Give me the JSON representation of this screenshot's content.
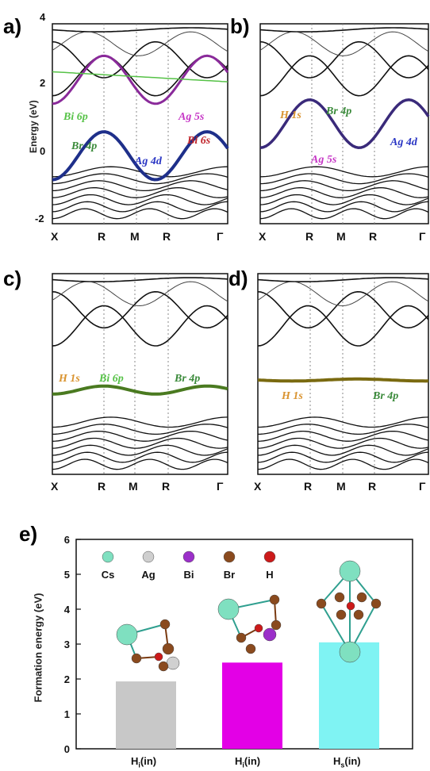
{
  "panels": {
    "a": {
      "letter": "a)",
      "ylabel": "Energy (eV)",
      "yticks": [
        "4",
        "2",
        "0",
        "-2"
      ],
      "kpoints": [
        "X",
        "R",
        "M",
        "R",
        "Γ"
      ],
      "orbitals": [
        {
          "text": "Bi 6p",
          "color": "#56c247"
        },
        {
          "text": "Br 4p",
          "color": "#3a8a3a"
        },
        {
          "text": "Ag 5s",
          "color": "#c637c6"
        },
        {
          "text": "Bi 6s",
          "color": "#c0242b"
        },
        {
          "text": "Ag 4d",
          "color": "#2a36c4"
        }
      ]
    },
    "b": {
      "letter": "b)",
      "kpoints": [
        "X",
        "R",
        "M",
        "R",
        "Γ"
      ],
      "orbitals": [
        {
          "text": "H 1s",
          "color": "#d9932f"
        },
        {
          "text": "Br 4p",
          "color": "#3a8a3a"
        },
        {
          "text": "Ag 5s",
          "color": "#c637c6"
        },
        {
          "text": "Ag 4d",
          "color": "#2a36c4"
        }
      ]
    },
    "c": {
      "letter": "c)",
      "kpoints": [
        "X",
        "R",
        "M",
        "R",
        "Γ"
      ],
      "orbitals": [
        {
          "text": "H 1s",
          "color": "#d9932f"
        },
        {
          "text": "Bi 6p",
          "color": "#56c247"
        },
        {
          "text": "Br 4p",
          "color": "#3a8a3a"
        }
      ]
    },
    "d": {
      "letter": "d)",
      "kpoints": [
        "X",
        "R",
        "M",
        "R",
        "Γ"
      ],
      "orbitals": [
        {
          "text": "H 1s",
          "color": "#d9932f"
        },
        {
          "text": "Br 4p",
          "color": "#3a8a3a"
        }
      ]
    }
  },
  "panel_e": {
    "letter": "e)",
    "legend": [
      {
        "label": "Cs",
        "color": "#7fe0c0"
      },
      {
        "label": "Ag",
        "color": "#cfcfcf"
      },
      {
        "label": "Bi",
        "color": "#9b2fc9"
      },
      {
        "label": "Br",
        "color": "#8a4a1e"
      },
      {
        "label": "H",
        "color": "#cc1a1a"
      }
    ]
  },
  "chart_data": {
    "type": "bar",
    "title": "",
    "xlabel": "",
    "ylabel": "Formation energy (eV)",
    "ylim": [
      0,
      6
    ],
    "yticks": [
      "0",
      "1",
      "2",
      "3",
      "4",
      "5",
      "6"
    ],
    "categories": [
      "H_i(in)",
      "H_i(in)",
      "H_s(in)"
    ],
    "category_display": [
      {
        "base": "H",
        "sub": "i",
        "tail": "(in)"
      },
      {
        "base": "H",
        "sub": "i",
        "tail": "(in)"
      },
      {
        "base": "H",
        "sub": "s",
        "tail": "(in)"
      }
    ],
    "values": [
      1.93,
      2.47,
      3.05
    ],
    "colors": [
      "#c8c8c8",
      "#e300e6",
      "#7ff3f3"
    ]
  }
}
